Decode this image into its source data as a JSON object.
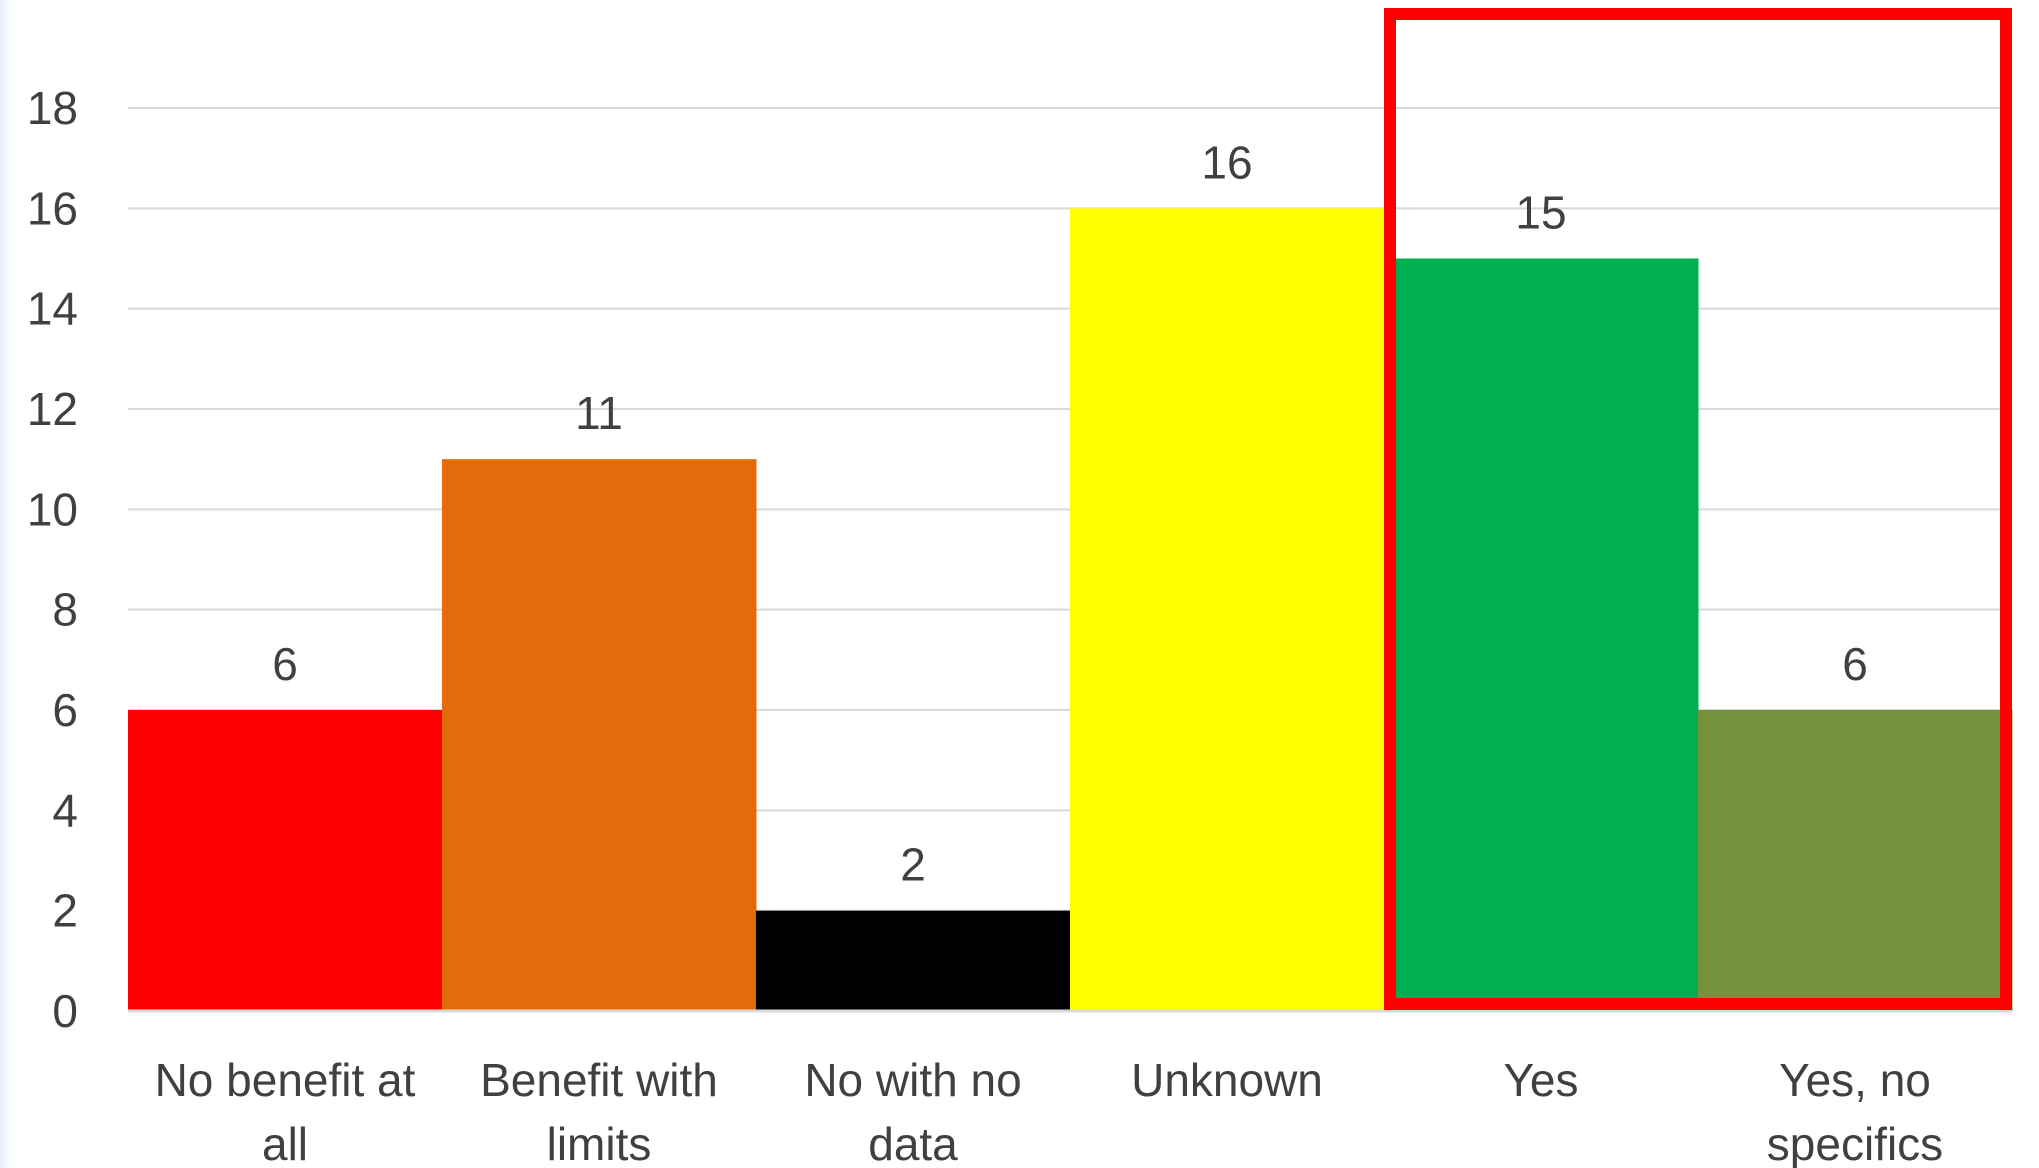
{
  "chart_data": {
    "type": "bar",
    "title": "",
    "xlabel": "",
    "ylabel": "",
    "ylim": [
      0,
      18
    ],
    "y_ticks": [
      0,
      2,
      4,
      6,
      8,
      10,
      12,
      14,
      16,
      18
    ],
    "grid": true,
    "legend": "none",
    "categories": [
      [
        "No benefit at",
        "all"
      ],
      [
        "Benefit with",
        "limits"
      ],
      [
        "No with no",
        "data"
      ],
      [
        "Unknown"
      ],
      [
        "Yes"
      ],
      [
        "Yes, no",
        "specifics"
      ]
    ],
    "values": [
      6,
      11,
      2,
      16,
      15,
      6
    ],
    "colors": [
      "#FF0000",
      "#E36C0A",
      "#000000",
      "#FFFF00",
      "#00B050",
      "#76923C"
    ],
    "highlight": {
      "categories": [
        "Yes",
        "Yes, no specifics"
      ],
      "color": "#FF0000"
    }
  }
}
